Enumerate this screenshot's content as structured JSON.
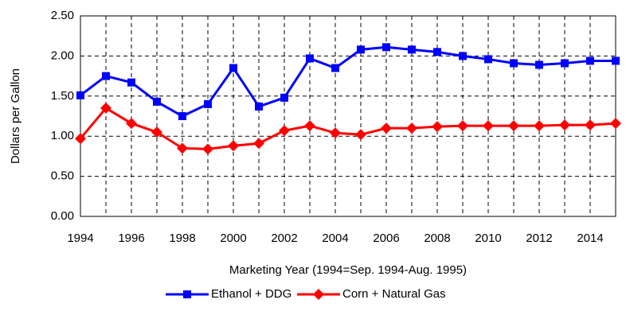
{
  "chart_data": {
    "type": "line",
    "x_label": "Marketing Year (1994=Sep. 1994-Aug. 1995)",
    "y_label": "Dollars per Gallon",
    "x": [
      1994,
      1995,
      1996,
      1997,
      1998,
      1999,
      2000,
      2001,
      2002,
      2003,
      2004,
      2005,
      2006,
      2007,
      2008,
      2009,
      2010,
      2011,
      2012,
      2013,
      2014,
      2015
    ],
    "series": [
      {
        "name": "Ethanol + DDG",
        "color": "#0000ff",
        "marker": "square",
        "values": [
          1.51,
          1.75,
          1.67,
          1.43,
          1.25,
          1.4,
          1.85,
          1.37,
          1.48,
          1.97,
          1.85,
          2.08,
          2.11,
          2.08,
          2.05,
          2.0,
          1.96,
          1.91,
          1.89,
          1.91,
          1.94,
          1.94
        ]
      },
      {
        "name": "Corn + Natural Gas",
        "color": "#ff0000",
        "marker": "diamond",
        "values": [
          0.97,
          1.35,
          1.16,
          1.05,
          0.85,
          0.84,
          0.88,
          0.91,
          1.07,
          1.13,
          1.04,
          1.02,
          1.1,
          1.1,
          1.12,
          1.13,
          1.13,
          1.13,
          1.13,
          1.14,
          1.14,
          1.16
        ]
      }
    ],
    "xlim": [
      1994,
      2015
    ],
    "xticks": [
      1994,
      1996,
      1998,
      2000,
      2002,
      2004,
      2006,
      2008,
      2010,
      2012,
      2014
    ],
    "xminor": [
      1995,
      1997,
      1999,
      2001,
      2003,
      2005,
      2007,
      2009,
      2011,
      2013,
      2015
    ],
    "ylim": [
      0,
      2.5
    ],
    "yticks": [
      {
        "value": 0,
        "label": "0.00"
      },
      {
        "value": 0.5,
        "label": "0.50"
      },
      {
        "value": 1,
        "label": "1.00"
      },
      {
        "value": 1.5,
        "label": "1.50"
      },
      {
        "value": 2,
        "label": "2.00"
      },
      {
        "value": 2.5,
        "label": "2.50"
      }
    ],
    "grid": true,
    "legend": "bottom"
  }
}
